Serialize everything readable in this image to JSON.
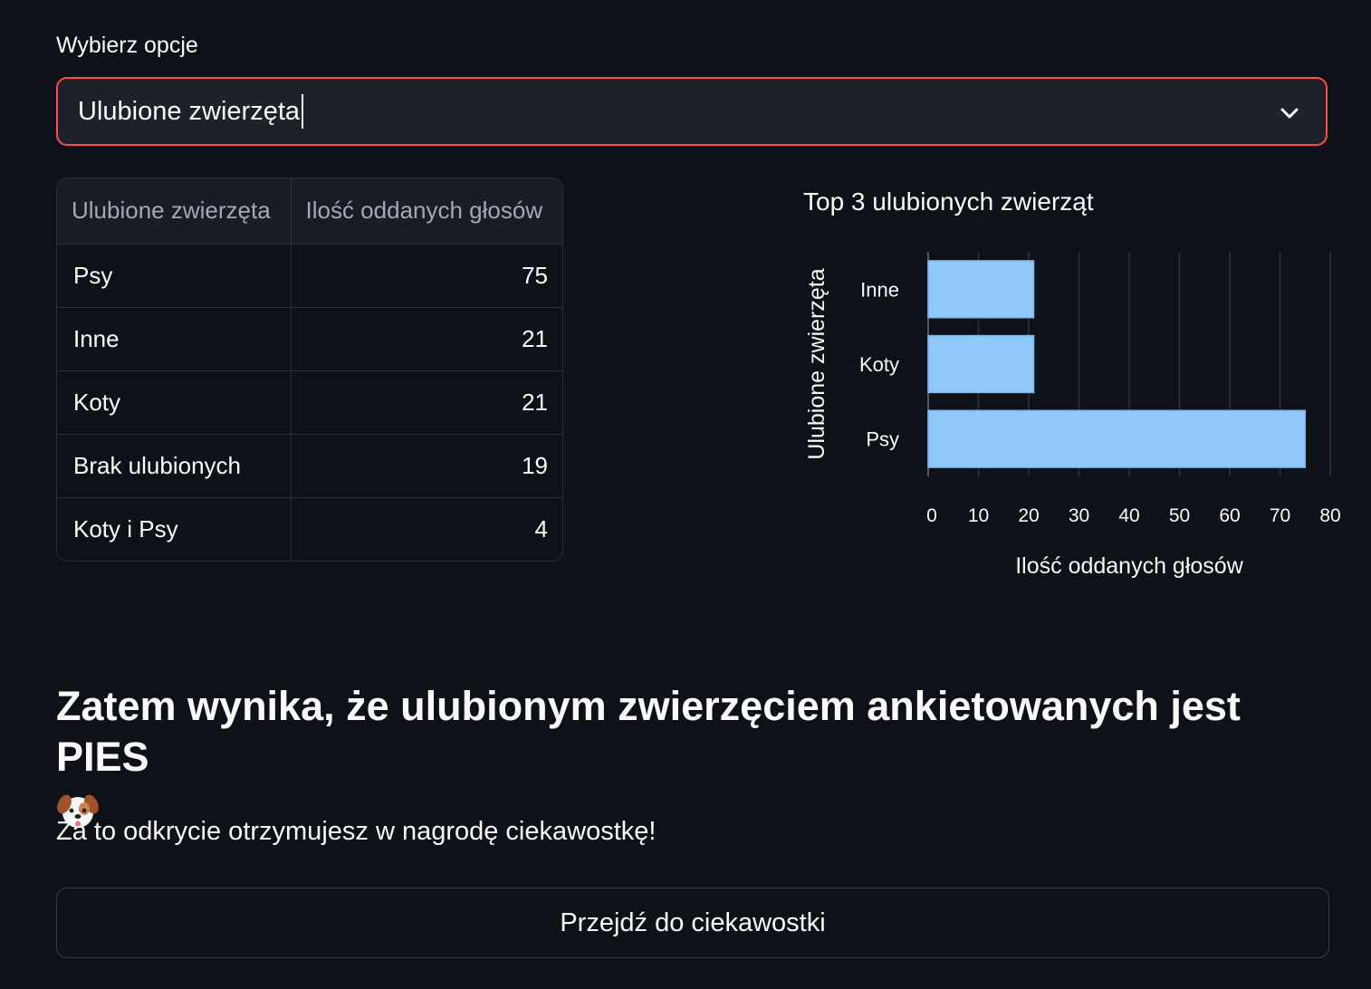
{
  "select": {
    "label": "Wybierz opcje",
    "value": "Ulubione zwierzęta",
    "icon": "chevron-down-icon"
  },
  "table": {
    "headers": [
      "Ulubione zwierzęta",
      "Ilość oddanych głosów"
    ],
    "rows": [
      {
        "name": "Psy",
        "votes": "75"
      },
      {
        "name": "Inne",
        "votes": "21"
      },
      {
        "name": "Koty",
        "votes": "21"
      },
      {
        "name": "Brak ulubionych",
        "votes": "19"
      },
      {
        "name": "Koty i Psy",
        "votes": "4"
      }
    ]
  },
  "chart_data": {
    "type": "bar",
    "orientation": "horizontal",
    "title": "Top 3 ulubionych zwierząt",
    "xlabel": "Ilość oddanych głosów",
    "ylabel": "Ulubione zwierzęta",
    "categories": [
      "Inne",
      "Koty",
      "Psy"
    ],
    "values": [
      21,
      21,
      75
    ],
    "xlim": [
      0,
      80
    ],
    "xticks": [
      0,
      10,
      20,
      30,
      40,
      50,
      60,
      70,
      80
    ],
    "grid": "vertical",
    "bar_color": "#90c8f9"
  },
  "result": {
    "headline": "Zatem wynika, że ulubionym zwierzęciem ankietowanych jest PIES",
    "icon": "dog-face-icon",
    "subtext": "Za to odkrycie otrzymujesz w nagrodę ciekawostkę!",
    "button_label": "Przejdź do ciekawostki"
  },
  "colors": {
    "background": "#0e1117",
    "accent": "#ff4b4b",
    "bar": "#90c8f9"
  }
}
